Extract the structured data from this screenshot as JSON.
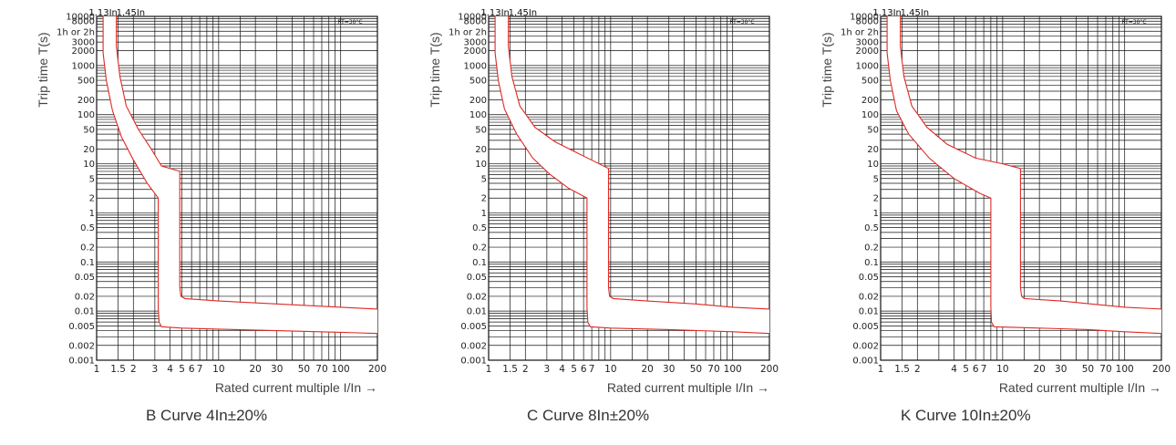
{
  "chart_data": [
    {
      "type": "line",
      "title": "B Curve 4In±20%",
      "ylabel": "Trip time T(s)",
      "xlabel": "Rated current multiple I/In →",
      "xscale": "log",
      "yscale": "log",
      "xlim": [
        1,
        200
      ],
      "ylim": [
        0.001,
        10000
      ],
      "grid": true,
      "top_markers": [
        "1.13In",
        "1.45In"
      ],
      "annotation": "RT=30°C",
      "y_tick_labels": [
        "10000",
        "8000",
        "1h or 2h",
        "3000",
        "2000",
        "1000",
        "500",
        "200",
        "100",
        "50",
        "20",
        "10",
        "5",
        "2",
        "1",
        "0.5",
        "0.2",
        "0.1",
        "0.05",
        "0.02",
        "0.01",
        "0.005",
        "0.002",
        "0.001"
      ],
      "x_tick_labels": [
        "1",
        "1.5",
        "2",
        "3",
        "4",
        "5",
        "6",
        "7",
        "10",
        "20",
        "30",
        "50",
        "70",
        "100",
        "200"
      ],
      "series": [
        {
          "name": "",
          "x": [
            1.13,
            1.13,
            1.2,
            1.35,
            1.6,
            2.0,
            2.6,
            3.2,
            3.2,
            3.25,
            3.4,
            5,
            10,
            30,
            100,
            200
          ],
          "y": [
            10000,
            1800,
            500,
            120,
            35,
            12,
            4.0,
            2.0,
            0.012,
            0.006,
            0.0048,
            0.0045,
            0.0043,
            0.004,
            0.0037,
            0.0035
          ]
        },
        {
          "name": "",
          "x": [
            1.45,
            1.45,
            1.55,
            1.75,
            2.2,
            2.8,
            3.4,
            4.8,
            4.8,
            4.9,
            5.3,
            10,
            30,
            100,
            200
          ],
          "y": [
            10000,
            2500,
            600,
            150,
            50,
            20,
            9.0,
            7.0,
            0.03,
            0.02,
            0.018,
            0.016,
            0.014,
            0.012,
            0.011
          ]
        }
      ]
    },
    {
      "type": "line",
      "title": "C Curve 8In±20%",
      "ylabel": "Trip time T(s)",
      "xlabel": "Rated current multiple I/In →",
      "xscale": "log",
      "yscale": "log",
      "xlim": [
        1,
        200
      ],
      "ylim": [
        0.001,
        10000
      ],
      "grid": true,
      "top_markers": [
        "1.13In",
        "1.45In"
      ],
      "annotation": "RT=30°C",
      "y_tick_labels": [
        "10000",
        "8000",
        "1h or 2h",
        "3000",
        "2000",
        "1000",
        "500",
        "200",
        "100",
        "50",
        "20",
        "10",
        "5",
        "2",
        "1",
        "0.5",
        "0.2",
        "0.1",
        "0.05",
        "0.02",
        "0.01",
        "0.005",
        "0.002",
        "0.001"
      ],
      "x_tick_labels": [
        "1",
        "1.5",
        "2",
        "3",
        "4",
        "5",
        "6",
        "7",
        "10",
        "20",
        "30",
        "50",
        "70",
        "100",
        "200"
      ],
      "series": [
        {
          "name": "",
          "x": [
            1.13,
            1.13,
            1.2,
            1.35,
            1.7,
            2.3,
            3.2,
            4.5,
            6.4,
            6.4,
            6.5,
            6.8,
            10,
            30,
            100,
            200
          ],
          "y": [
            10000,
            1800,
            500,
            130,
            40,
            13,
            6.0,
            3.2,
            2.0,
            0.012,
            0.006,
            0.0048,
            0.0045,
            0.0042,
            0.0038,
            0.0035
          ]
        },
        {
          "name": "",
          "x": [
            1.45,
            1.45,
            1.55,
            1.8,
            2.4,
            3.5,
            5.5,
            9.6,
            9.6,
            9.8,
            10.5,
            20,
            50,
            100,
            200
          ],
          "y": [
            10000,
            2500,
            600,
            150,
            55,
            28,
            16,
            8.0,
            0.03,
            0.02,
            0.018,
            0.016,
            0.014,
            0.012,
            0.011
          ]
        }
      ]
    },
    {
      "type": "line",
      "title": "K Curve 10In±20%",
      "ylabel": "Trip time T(s)",
      "xlabel": "Rated current multiple I/In →",
      "xscale": "log",
      "yscale": "log",
      "xlim": [
        1,
        200
      ],
      "ylim": [
        0.001,
        10000
      ],
      "grid": true,
      "top_markers": [
        "1.13In",
        "1.45In"
      ],
      "annotation": "RT=30°C",
      "y_tick_labels": [
        "10000",
        "8000",
        "1h or 2h",
        "3000",
        "2000",
        "1000",
        "500",
        "200",
        "100",
        "50",
        "20",
        "10",
        "5",
        "2",
        "1",
        "0.5",
        "0.2",
        "0.1",
        "0.05",
        "0.02",
        "0.01",
        "0.005",
        "0.002",
        "0.001"
      ],
      "x_tick_labels": [
        "1",
        "1.5",
        "2",
        "4",
        "5",
        "6",
        "7",
        "10",
        "20",
        "30",
        "50",
        "70",
        "100",
        "200"
      ],
      "series": [
        {
          "name": "",
          "x": [
            1.13,
            1.13,
            1.2,
            1.35,
            1.7,
            2.5,
            4.0,
            6.5,
            8.0,
            8.0,
            8.1,
            8.5,
            20,
            50,
            100,
            200
          ],
          "y": [
            10000,
            1800,
            500,
            120,
            40,
            13,
            5.0,
            2.5,
            2.0,
            0.012,
            0.006,
            0.0048,
            0.0045,
            0.0042,
            0.0038,
            0.0035
          ]
        },
        {
          "name": "",
          "x": [
            1.45,
            1.45,
            1.55,
            1.8,
            2.4,
            3.5,
            6.0,
            10,
            14,
            14,
            14.3,
            15,
            30,
            100,
            200
          ],
          "y": [
            10000,
            2500,
            600,
            150,
            55,
            25,
            13,
            10,
            8.0,
            0.03,
            0.02,
            0.018,
            0.016,
            0.012,
            0.011
          ]
        }
      ]
    }
  ],
  "colors": {
    "curve": "#e02a24",
    "grid": "#111111",
    "text": "#222222",
    "label": "#444444"
  }
}
